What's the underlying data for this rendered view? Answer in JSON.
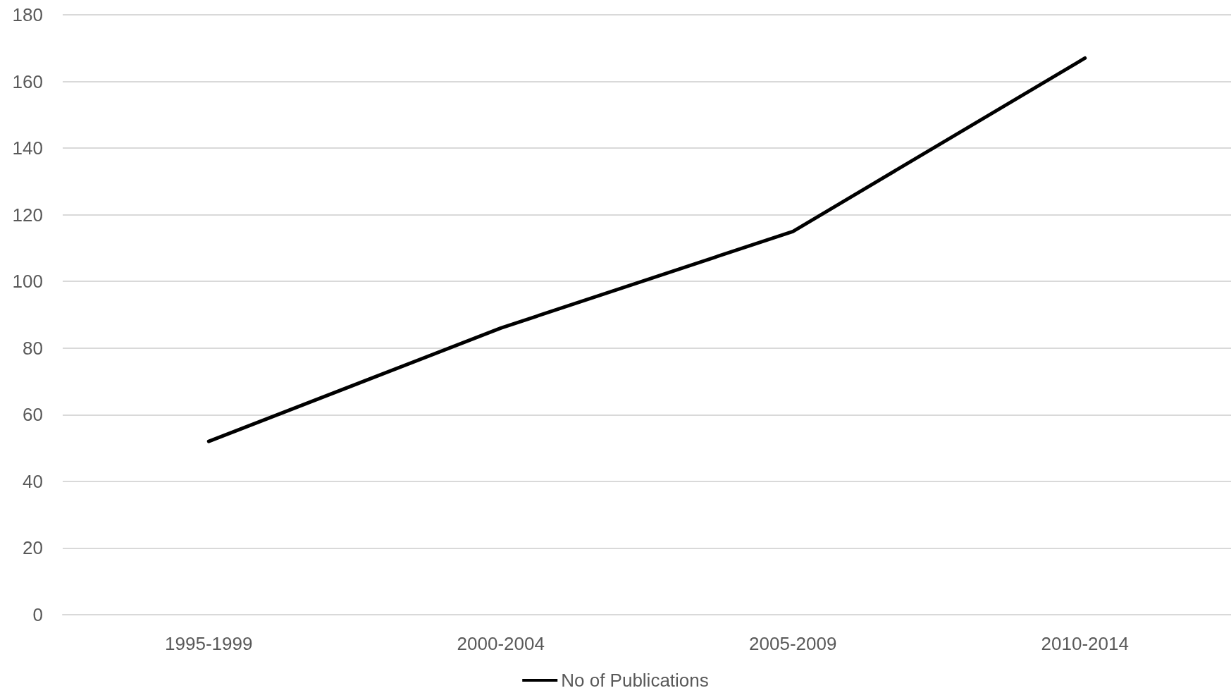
{
  "chart_data": {
    "type": "line",
    "categories": [
      "1995-1999",
      "2000-2004",
      "2005-2009",
      "2010-2014"
    ],
    "series": [
      {
        "name": "No of Publications",
        "color": "#000000",
        "values": [
          52,
          86,
          115,
          167
        ]
      }
    ],
    "ylim": [
      0,
      180
    ],
    "yticks": [
      0,
      20,
      40,
      60,
      80,
      100,
      120,
      140,
      160,
      180
    ],
    "grid": "y",
    "legend": "bottom",
    "marker": "none",
    "line_style": "solid"
  }
}
